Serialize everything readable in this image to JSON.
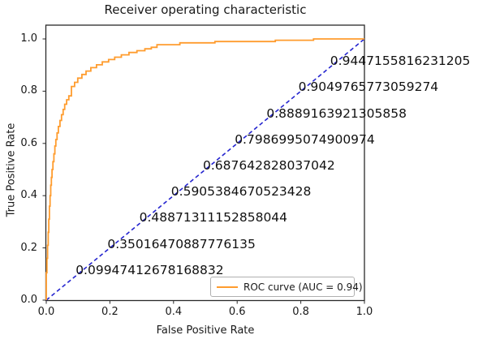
{
  "colors": {
    "roc_line": "#ff9c2e",
    "diagonal_line": "#2424cf",
    "spine": "#2a2a2a",
    "text": "#191919"
  },
  "chart_data": {
    "type": "line",
    "title": "Receiver operating characteristic",
    "xlabel": "False Positive Rate",
    "ylabel": "True Positive Rate",
    "xlim": [
      0.0,
      1.0
    ],
    "ylim": [
      0.0,
      1.05
    ],
    "grid": false,
    "legend_position": "lower right",
    "x_ticks": [
      0.0,
      0.2,
      0.4,
      0.6,
      0.8,
      1.0
    ],
    "x_tick_labels": [
      "0.0",
      "0.2",
      "0.4",
      "0.6",
      "0.8",
      "1.0"
    ],
    "y_ticks": [
      0.0,
      0.2,
      0.4,
      0.6,
      0.8,
      1.0
    ],
    "y_tick_labels": [
      "0.0",
      "0.2",
      "0.4",
      "0.6",
      "0.8",
      "1.0"
    ],
    "auc": 0.94,
    "series": [
      {
        "name": "ROC curve (AUC = 0.94)",
        "color": "#ff9c2e",
        "line_style": "solid",
        "in_legend": true,
        "points": [
          [
            0,
            0
          ],
          [
            0,
            0.105
          ],
          [
            0.002,
            0.105
          ],
          [
            0.002,
            0.16
          ],
          [
            0.004,
            0.16
          ],
          [
            0.004,
            0.21
          ],
          [
            0.006,
            0.21
          ],
          [
            0.006,
            0.26
          ],
          [
            0.008,
            0.26
          ],
          [
            0.008,
            0.31
          ],
          [
            0.01,
            0.31
          ],
          [
            0.01,
            0.36
          ],
          [
            0.012,
            0.36
          ],
          [
            0.012,
            0.4
          ],
          [
            0.014,
            0.4
          ],
          [
            0.014,
            0.44
          ],
          [
            0.016,
            0.44
          ],
          [
            0.016,
            0.47
          ],
          [
            0.018,
            0.47
          ],
          [
            0.018,
            0.5
          ],
          [
            0.021,
            0.5
          ],
          [
            0.021,
            0.53
          ],
          [
            0.024,
            0.53
          ],
          [
            0.024,
            0.56
          ],
          [
            0.027,
            0.56
          ],
          [
            0.027,
            0.59
          ],
          [
            0.03,
            0.59
          ],
          [
            0.03,
            0.615
          ],
          [
            0.034,
            0.615
          ],
          [
            0.034,
            0.64
          ],
          [
            0.038,
            0.64
          ],
          [
            0.038,
            0.665
          ],
          [
            0.043,
            0.665
          ],
          [
            0.043,
            0.688
          ],
          [
            0.048,
            0.688
          ],
          [
            0.048,
            0.71
          ],
          [
            0.053,
            0.71
          ],
          [
            0.053,
            0.73
          ],
          [
            0.058,
            0.73
          ],
          [
            0.058,
            0.75
          ],
          [
            0.064,
            0.75
          ],
          [
            0.064,
            0.767
          ],
          [
            0.071,
            0.767
          ],
          [
            0.071,
            0.782
          ],
          [
            0.079,
            0.782
          ],
          [
            0.079,
            0.818
          ],
          [
            0.089,
            0.818
          ],
          [
            0.089,
            0.834
          ],
          [
            0.099,
            0.834
          ],
          [
            0.099,
            0.85
          ],
          [
            0.112,
            0.85
          ],
          [
            0.112,
            0.864
          ],
          [
            0.125,
            0.864
          ],
          [
            0.125,
            0.877
          ],
          [
            0.14,
            0.877
          ],
          [
            0.14,
            0.89
          ],
          [
            0.158,
            0.89
          ],
          [
            0.158,
            0.901
          ],
          [
            0.176,
            0.901
          ],
          [
            0.176,
            0.912
          ],
          [
            0.196,
            0.912
          ],
          [
            0.196,
            0.921
          ],
          [
            0.215,
            0.921
          ],
          [
            0.215,
            0.93
          ],
          [
            0.236,
            0.93
          ],
          [
            0.236,
            0.939
          ],
          [
            0.26,
            0.939
          ],
          [
            0.26,
            0.948
          ],
          [
            0.285,
            0.948
          ],
          [
            0.285,
            0.955
          ],
          [
            0.31,
            0.955
          ],
          [
            0.31,
            0.962
          ],
          [
            0.33,
            0.962
          ],
          [
            0.33,
            0.968
          ],
          [
            0.348,
            0.968
          ],
          [
            0.348,
            0.978
          ],
          [
            0.42,
            0.978
          ],
          [
            0.42,
            0.985
          ],
          [
            0.53,
            0.985
          ],
          [
            0.53,
            0.99
          ],
          [
            0.72,
            0.99
          ],
          [
            0.72,
            0.995
          ],
          [
            0.84,
            0.995
          ],
          [
            0.84,
            1.0
          ],
          [
            1.0,
            1.0
          ]
        ]
      },
      {
        "name": "chance-diagonal",
        "color": "#2424cf",
        "line_style": "dashed",
        "in_legend": false,
        "points": [
          [
            0,
            0
          ],
          [
            1,
            1
          ]
        ]
      }
    ],
    "annotations": [
      {
        "text": "0.9447155816231205",
        "x": 0.9,
        "y": 0.9
      },
      {
        "text": "0.9049765773059274",
        "x": 0.8,
        "y": 0.8
      },
      {
        "text": "0.8889163921305858",
        "x": 0.7,
        "y": 0.7
      },
      {
        "text": "0.7986995074900974",
        "x": 0.6,
        "y": 0.6
      },
      {
        "text": "0.687642828037042",
        "x": 0.5,
        "y": 0.5
      },
      {
        "text": "0.5905384670523428",
        "x": 0.4,
        "y": 0.4
      },
      {
        "text": "0.48871311152858044",
        "x": 0.3,
        "y": 0.3
      },
      {
        "text": "0.35016470887776135",
        "x": 0.2,
        "y": 0.2
      },
      {
        "text": "0.09947412678168832",
        "x": 0.1,
        "y": 0.1
      }
    ],
    "legend_label": "ROC curve (AUC = 0.94)"
  }
}
